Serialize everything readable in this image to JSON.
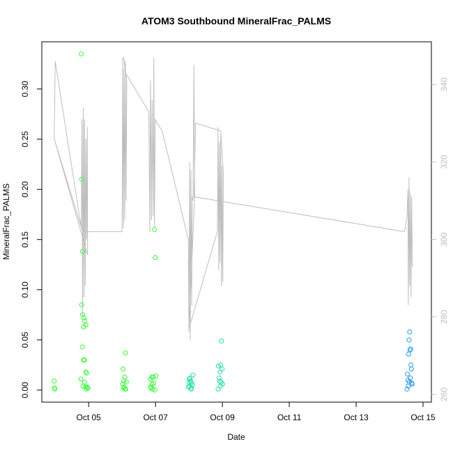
{
  "chart_data": {
    "type": "scatter",
    "title": "ATOM3 Southbound MineralFrac_PALMS",
    "xlabel": "Date",
    "ylabel": "MineralFrac_PALMS",
    "x_tick_labels": [
      "Oct 05",
      "Oct 07",
      "Oct 09",
      "Oct 11",
      "Oct 13",
      "Oct 15"
    ],
    "x_tick_days": [
      5,
      7,
      9,
      11,
      13,
      15
    ],
    "xlim_days": [
      3.6,
      15.25
    ],
    "ylim": [
      -0.012,
      0.347
    ],
    "yticks": [
      0.0,
      0.05,
      0.1,
      0.15,
      0.2,
      0.25,
      0.3
    ],
    "y_tick_labels": [
      "0.00",
      "0.05",
      "0.10",
      "0.15",
      "0.20",
      "0.25",
      "0.30"
    ],
    "y2lim": [
      258,
      351
    ],
    "y2ticks": [
      260,
      280,
      300,
      320,
      340
    ],
    "y2_tick_labels": [
      "260",
      "280",
      "300",
      "320",
      "340"
    ],
    "colors": {
      "green": "#33ff33",
      "teal": "#22ddaa",
      "blue": "#2299ee",
      "line": "#bdbdbd"
    },
    "scatter": [
      {
        "color": "green",
        "points": [
          [
            3.97,
            0.009
          ],
          [
            3.98,
            0.002
          ],
          [
            3.99,
            0.001
          ],
          [
            4.78,
            0.335
          ],
          [
            4.79,
            0.21
          ],
          [
            4.82,
            0.138
          ],
          [
            4.79,
            0.085
          ],
          [
            4.82,
            0.075
          ],
          [
            4.86,
            0.072
          ],
          [
            4.88,
            0.069
          ],
          [
            4.85,
            0.063
          ],
          [
            4.92,
            0.065
          ],
          [
            4.81,
            0.043
          ],
          [
            4.85,
            0.03
          ],
          [
            4.88,
            0.03
          ],
          [
            4.92,
            0.018
          ],
          [
            4.94,
            0.017
          ],
          [
            4.77,
            0.011
          ],
          [
            4.83,
            0.004
          ],
          [
            4.88,
            0.008
          ],
          [
            4.91,
            0.003
          ],
          [
            4.93,
            0.001
          ],
          [
            4.96,
            0.003
          ],
          [
            4.98,
            0.002
          ],
          [
            6.03,
            0.021
          ],
          [
            6.1,
            0.037
          ],
          [
            6.05,
            0.009
          ],
          [
            6.08,
            0.013
          ],
          [
            6.02,
            0.006
          ],
          [
            6.06,
            0.003
          ],
          [
            6.09,
            0.001
          ],
          [
            6.13,
            0.008
          ],
          [
            6.04,
            0.002
          ],
          [
            6.11,
            0.001
          ],
          [
            6.85,
            0.011
          ],
          [
            6.89,
            0.013
          ],
          [
            6.93,
            0.013
          ],
          [
            6.97,
            0.16
          ],
          [
            6.99,
            0.132
          ],
          [
            6.9,
            0.006
          ],
          [
            6.95,
            0.007
          ],
          [
            6.86,
            0.003
          ],
          [
            6.92,
            0.001
          ],
          [
            6.98,
            0.0
          ],
          [
            6.87,
            0.002
          ],
          [
            7.01,
            0.014
          ]
        ]
      },
      {
        "color": "teal",
        "points": [
          [
            7.98,
            0.003
          ],
          [
            8.0,
            0.008
          ],
          [
            8.01,
            0.011
          ],
          [
            8.03,
            0.012
          ],
          [
            8.05,
            0.009
          ],
          [
            8.07,
            0.007
          ],
          [
            8.08,
            0.002
          ],
          [
            8.1,
            0.005
          ],
          [
            8.12,
            0.015
          ],
          [
            8.02,
            0.004
          ],
          [
            8.06,
            0.001
          ],
          [
            8.88,
            0.024
          ],
          [
            8.9,
            0.012
          ],
          [
            8.93,
            0.018
          ],
          [
            8.95,
            0.025
          ],
          [
            8.97,
            0.049
          ],
          [
            8.99,
            0.021
          ],
          [
            9.0,
            0.006
          ],
          [
            8.92,
            0.009
          ],
          [
            8.87,
            0.001
          ],
          [
            8.94,
            0.004
          ],
          [
            8.96,
            0.008
          ]
        ]
      },
      {
        "color": "blue",
        "points": [
          [
            14.52,
            0.001
          ],
          [
            14.53,
            0.016
          ],
          [
            14.55,
            0.01
          ],
          [
            14.57,
            0.036
          ],
          [
            14.58,
            0.05
          ],
          [
            14.6,
            0.058
          ],
          [
            14.61,
            0.04
          ],
          [
            14.63,
            0.041
          ],
          [
            14.64,
            0.025
          ],
          [
            14.65,
            0.021
          ],
          [
            14.67,
            0.006
          ],
          [
            14.56,
            0.004
          ],
          [
            14.59,
            0.008
          ],
          [
            14.62,
            0.012
          ],
          [
            14.66,
            0.007
          ]
        ]
      }
    ],
    "line_series": [
      [
        3.97,
        326
      ],
      [
        4.0,
        346
      ],
      [
        4.78,
        303
      ],
      [
        4.8,
        331
      ],
      [
        4.82,
        280
      ],
      [
        4.84,
        334
      ],
      [
        4.86,
        285
      ],
      [
        4.88,
        331
      ],
      [
        4.9,
        288
      ],
      [
        4.92,
        326
      ],
      [
        4.94,
        300
      ],
      [
        4.96,
        329
      ],
      [
        4.97,
        296
      ],
      [
        3.97,
        326
      ],
      [
        4.82,
        302
      ],
      [
        6.0,
        302
      ],
      [
        6.02,
        347
      ],
      [
        6.04,
        303
      ],
      [
        6.06,
        344
      ],
      [
        6.08,
        305
      ],
      [
        6.1,
        346
      ],
      [
        6.12,
        310
      ],
      [
        6.14,
        341
      ],
      [
        6.05,
        347
      ],
      [
        6.1,
        343
      ],
      [
        6.8,
        333
      ],
      [
        6.83,
        302
      ],
      [
        6.85,
        341
      ],
      [
        6.88,
        305
      ],
      [
        6.9,
        336
      ],
      [
        6.93,
        306
      ],
      [
        6.95,
        347
      ],
      [
        6.97,
        303
      ],
      [
        6.99,
        331
      ],
      [
        6.98,
        331
      ],
      [
        7.2,
        328
      ],
      [
        7.98,
        300
      ],
      [
        8.0,
        276
      ],
      [
        8.02,
        320
      ],
      [
        8.04,
        274
      ],
      [
        8.06,
        318
      ],
      [
        8.08,
        283
      ],
      [
        8.1,
        311
      ],
      [
        8.12,
        310
      ],
      [
        8.15,
        345
      ],
      [
        8.17,
        311
      ],
      [
        8.0,
        277
      ],
      [
        8.85,
        302
      ],
      [
        8.87,
        329
      ],
      [
        8.89,
        292
      ],
      [
        8.91,
        325
      ],
      [
        8.93,
        294
      ],
      [
        8.95,
        327
      ],
      [
        8.97,
        288
      ],
      [
        8.99,
        319
      ],
      [
        9.01,
        289
      ],
      [
        9.03,
        317
      ],
      [
        8.95,
        328
      ],
      [
        8.2,
        330
      ],
      [
        8.15,
        311
      ],
      [
        14.45,
        302
      ],
      [
        14.52,
        306
      ],
      [
        14.55,
        313
      ],
      [
        14.56,
        283
      ],
      [
        14.58,
        316
      ],
      [
        14.6,
        288
      ],
      [
        14.62,
        312
      ],
      [
        14.64,
        285
      ],
      [
        14.66,
        311
      ],
      [
        14.68,
        293
      ]
    ]
  }
}
